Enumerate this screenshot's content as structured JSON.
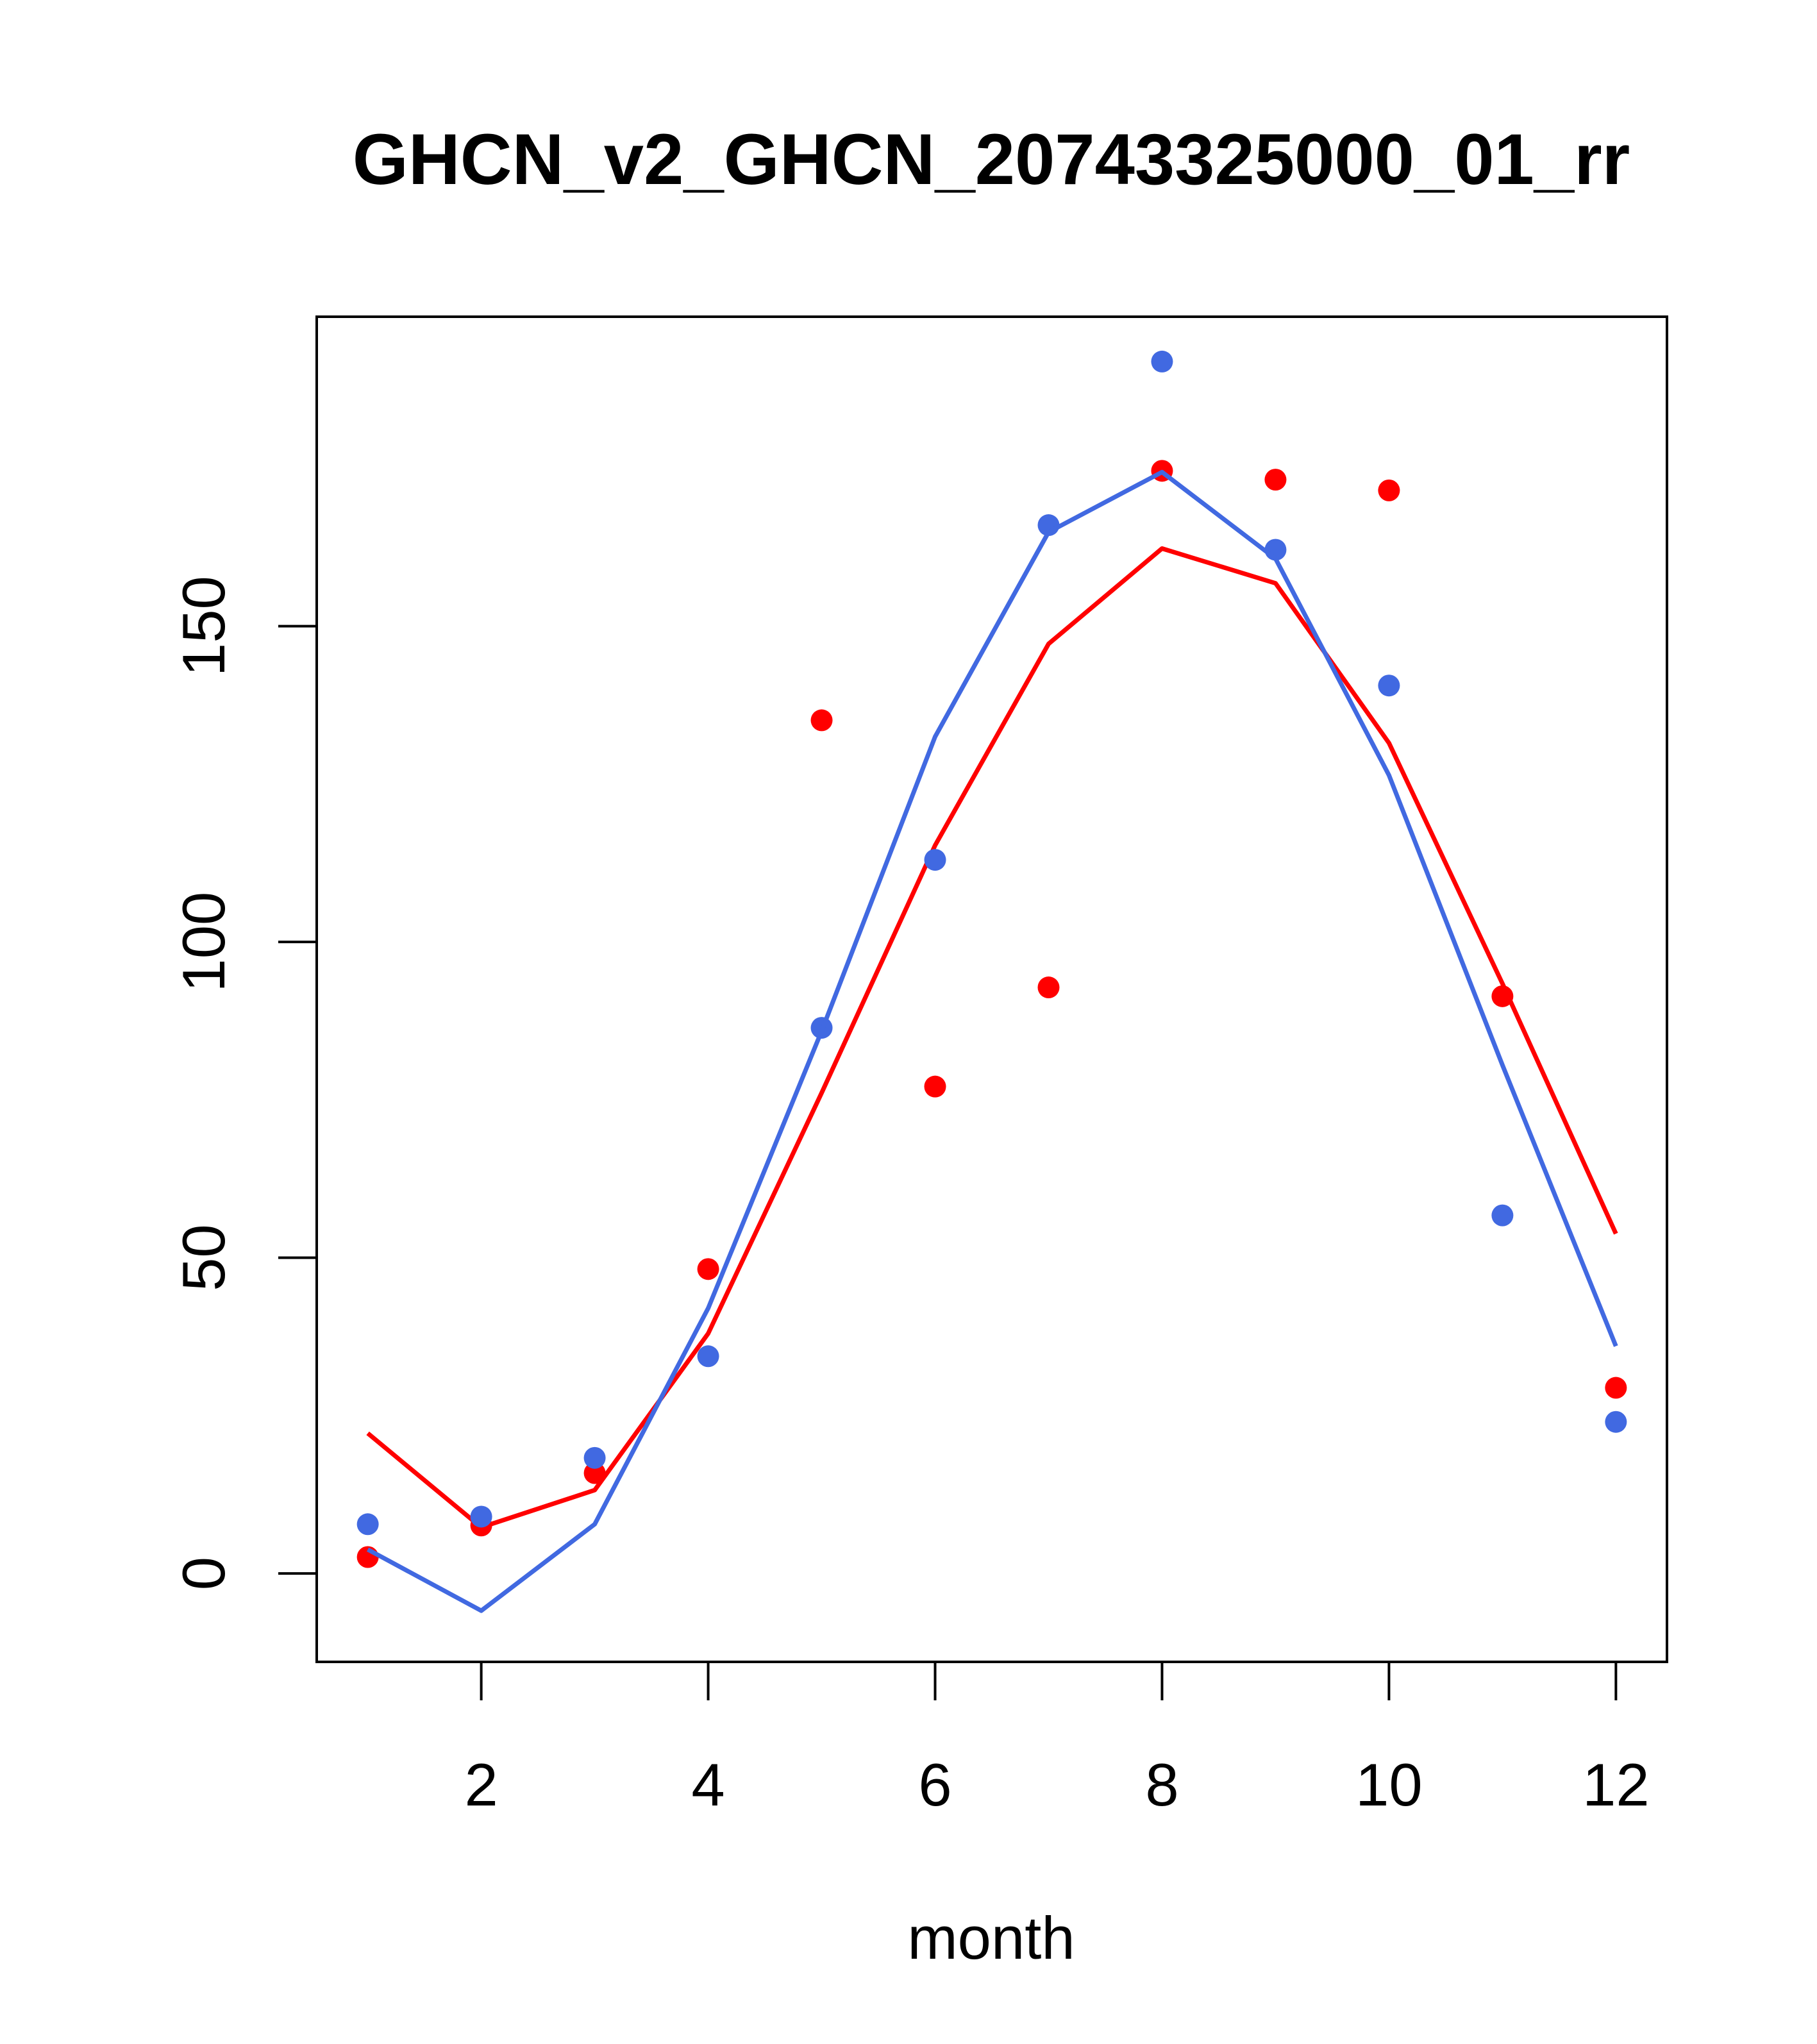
{
  "chart_data": {
    "type": "line",
    "title": "GHCN_v2_GHCN_20743325000_01_rr",
    "xlabel": "month",
    "ylabel": "",
    "xlim": [
      0.55,
      12.45
    ],
    "ylim": [
      -14,
      199
    ],
    "x_ticks": [
      2,
      4,
      6,
      8,
      10,
      12
    ],
    "y_ticks": [
      0,
      50,
      100,
      150
    ],
    "grid": false,
    "x": [
      1,
      2,
      3,
      4,
      5,
      6,
      7,
      8,
      9,
      10,
      11,
      12
    ],
    "series": [
      {
        "name": "red points",
        "kind": "points",
        "color": "#ff0000",
        "values": [
          2.6,
          7.6,
          15.9,
          48.2,
          135.1,
          77.1,
          92.8,
          174.6,
          173.2,
          171.5,
          91.4,
          29.4
        ]
      },
      {
        "name": "red line",
        "kind": "line",
        "color": "#ff0000",
        "values": [
          22.2,
          7.3,
          13.2,
          38.0,
          76.1,
          115.3,
          147.2,
          162.3,
          156.8,
          131.5,
          93.4,
          53.8
        ]
      },
      {
        "name": "blue points",
        "kind": "points",
        "color": "#4169e1",
        "values": [
          7.8,
          9.0,
          18.3,
          34.4,
          86.4,
          113.0,
          166.0,
          191.9,
          162.1,
          140.6,
          56.7,
          24.0
        ]
      },
      {
        "name": "blue line",
        "kind": "line",
        "color": "#4169e1",
        "values": [
          3.8,
          -5.9,
          7.8,
          42.0,
          85.9,
          132.5,
          164.9,
          174.4,
          160.7,
          126.4,
          80.5,
          36.0
        ]
      }
    ]
  }
}
